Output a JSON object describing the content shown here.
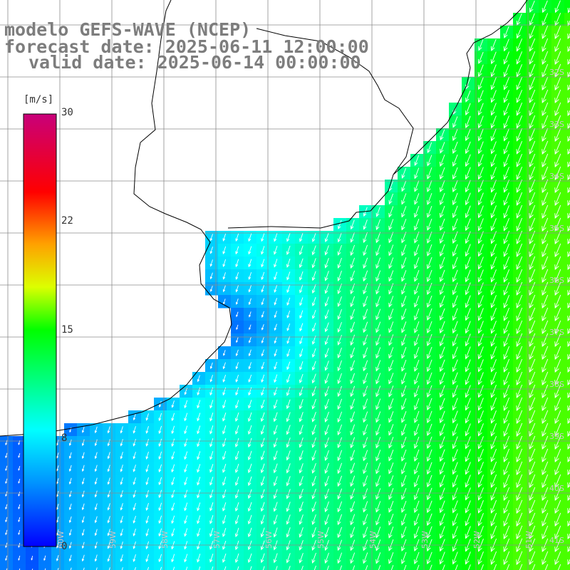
{
  "title": {
    "line1": "modelo GEFS-WAVE (NCEP)",
    "line2": "forecast date: 2025-06-11 12:00:00",
    "line3": "valid date: 2025-06-14 00:00:00"
  },
  "colorbar": {
    "unit": "[m/s]",
    "ticks": [
      {
        "label": "30",
        "value": 30
      },
      {
        "label": "22",
        "value": 22
      },
      {
        "label": "15",
        "value": 15
      },
      {
        "label": "8",
        "value": 8
      },
      {
        "label": "0",
        "value": 0
      }
    ],
    "min": 0,
    "max": 30
  },
  "grid": {
    "lat_labels": [
      "32S",
      "33S",
      "34S",
      "35S",
      "36S",
      "37S",
      "38S",
      "39S",
      "40S",
      "41S"
    ],
    "lon_labels": [
      "60W",
      "59W",
      "58W",
      "57W",
      "56W",
      "55W",
      "54W",
      "53W",
      "52W",
      "51W"
    ]
  },
  "colors": {
    "land": "#ffffff",
    "coastline": "#000000",
    "gridline": "#8c8c8c",
    "arrow": "#ffffff",
    "label": "#7d7d7d"
  }
}
